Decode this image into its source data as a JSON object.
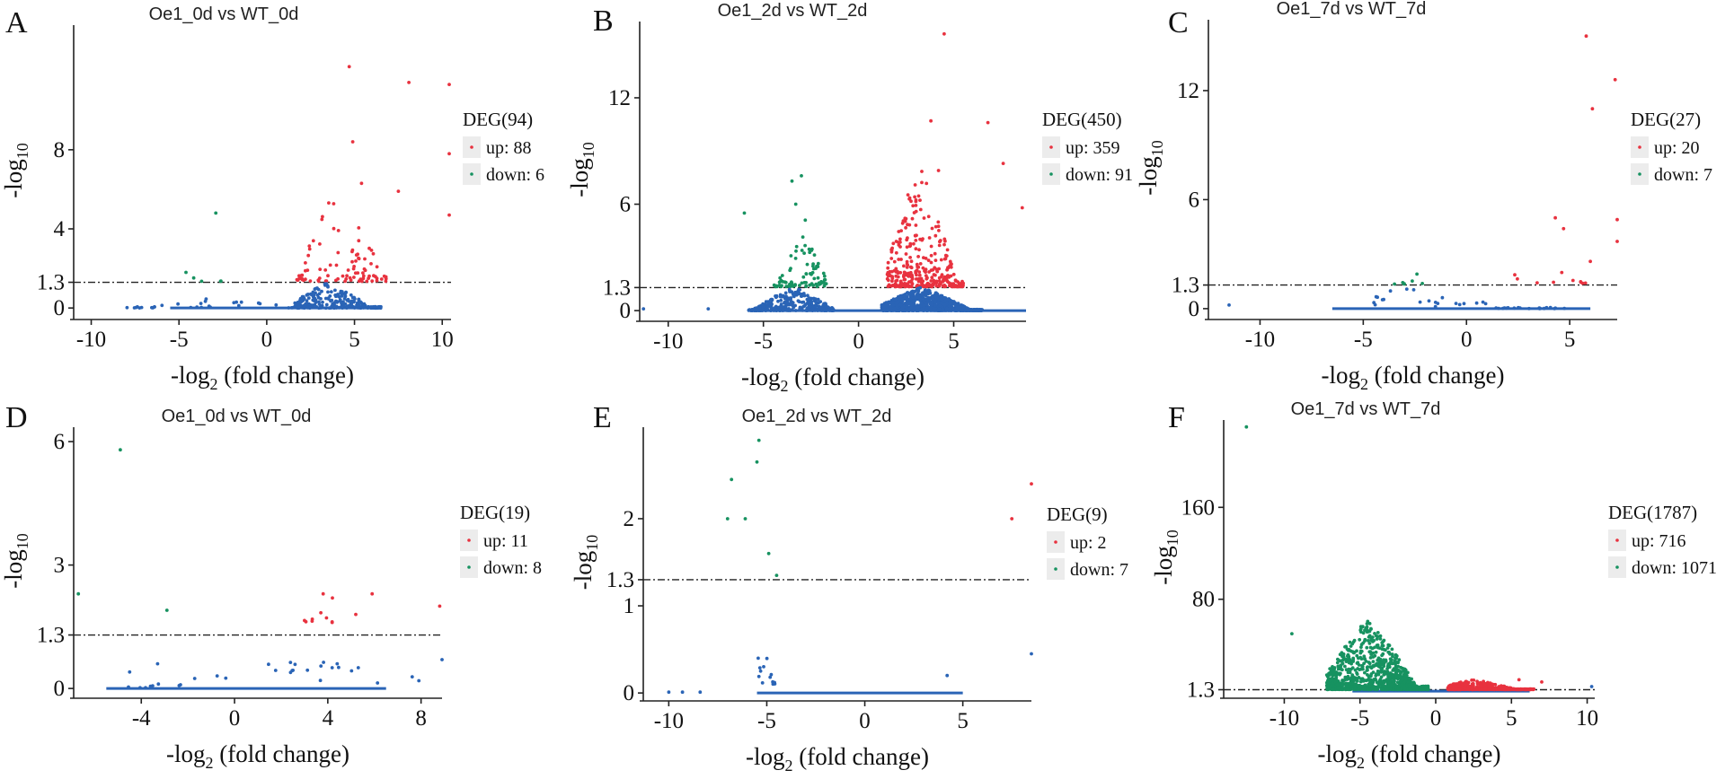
{
  "colors": {
    "up": "#e8323f",
    "down": "#179260",
    "ns": "#2a64b6",
    "legend_bg": "#ececec"
  },
  "chart_data": [
    {
      "type": "scatter",
      "panel": "A",
      "title": "Oe1_0d vs WT_0d",
      "xlabel": "-log",
      "xlabel_sub": "2",
      "xlabel_tail": " (fold change)",
      "ylabel": "-log",
      "ylabel_sub": "10",
      "xlim": [
        -11,
        10.5
      ],
      "ylim": [
        -0.4,
        14.3
      ],
      "xticks": [
        -10,
        -5,
        0,
        5,
        10
      ],
      "yticks": [
        0,
        1.3,
        4,
        8
      ],
      "threshold": 1.3,
      "legend": {
        "title": "DEG(94)",
        "up": "up: 88",
        "down": "down: 6"
      },
      "clouds": {
        "up": {
          "n": 88,
          "xmin": 1.7,
          "xmax": 6.8,
          "ymin": 1.35,
          "ymax": 6.5,
          "peak": 4.2,
          "decay": 2.2
        },
        "down": {
          "n": 4,
          "xmin": -4.5,
          "xmax": -2.5,
          "ymin": 1.35,
          "ymax": 2.0,
          "peak": -3.5,
          "decay": 2.5
        },
        "ns": {
          "n": 260,
          "xmin": 1.6,
          "xmax": 6.5,
          "ymin": 0,
          "ymax": 1.3,
          "peak": 3.5,
          "decay": 1.8
        },
        "ns2": {
          "n": 30,
          "xmin": -8,
          "xmax": 1.5,
          "ymin": 0,
          "ymax": 0.6,
          "peak": -3,
          "decay": 1.5
        }
      },
      "extras": [
        {
          "x": 4.7,
          "y": 12.2,
          "c": "up"
        },
        {
          "x": 8.1,
          "y": 11.4,
          "c": "up"
        },
        {
          "x": 10.4,
          "y": 11.3,
          "c": "up"
        },
        {
          "x": 4.9,
          "y": 8.4,
          "c": "up"
        },
        {
          "x": 10.4,
          "y": 7.8,
          "c": "up"
        },
        {
          "x": 5.4,
          "y": 6.3,
          "c": "up"
        },
        {
          "x": 7.5,
          "y": 5.9,
          "c": "up"
        },
        {
          "x": 10.4,
          "y": 4.7,
          "c": "up"
        },
        {
          "x": -2.9,
          "y": 4.8,
          "c": "down"
        },
        {
          "x": -4.6,
          "y": 1.8,
          "c": "down"
        }
      ]
    },
    {
      "type": "scatter",
      "panel": "B",
      "title": "Oe1_2d vs WT_2d",
      "xlabel": "-log",
      "xlabel_sub": "2",
      "xlabel_tail": " (fold change)",
      "ylabel": "-log",
      "ylabel_sub": "10",
      "xlim": [
        -11.5,
        8.8
      ],
      "ylim": [
        -0.4,
        16.3
      ],
      "xticks": [
        -10,
        -5,
        0,
        5
      ],
      "yticks": [
        0,
        1.3,
        6,
        12
      ],
      "threshold": 1.3,
      "legend": {
        "title": "DEG(450)",
        "up": "up: 359",
        "down": "down: 91"
      },
      "clouds": {
        "up": {
          "n": 340,
          "xmin": 1.5,
          "xmax": 5.5,
          "ymin": 1.35,
          "ymax": 8.2,
          "peak": 3.2,
          "decay": 2.3
        },
        "down": {
          "n": 85,
          "xmin": -4.5,
          "xmax": -1.6,
          "ymin": 1.35,
          "ymax": 4.2,
          "peak": -2.9,
          "decay": 2.0
        },
        "ns": {
          "n": 900,
          "xmin": 1.2,
          "xmax": 6.5,
          "ymin": 0,
          "ymax": 1.3,
          "peak": 3.3,
          "decay": 1.6
        },
        "ns2": {
          "n": 350,
          "xmin": -5.8,
          "xmax": -1.3,
          "ymin": 0,
          "ymax": 1.3,
          "peak": -3.4,
          "decay": 1.6
        }
      },
      "extras": [
        {
          "x": 4.5,
          "y": 15.6,
          "c": "up"
        },
        {
          "x": 3.8,
          "y": 10.7,
          "c": "up"
        },
        {
          "x": 6.8,
          "y": 10.6,
          "c": "up"
        },
        {
          "x": 7.6,
          "y": 8.3,
          "c": "up"
        },
        {
          "x": 4.2,
          "y": 7.9,
          "c": "up"
        },
        {
          "x": 8.6,
          "y": 5.8,
          "c": "up"
        },
        {
          "x": -3.0,
          "y": 7.6,
          "c": "down"
        },
        {
          "x": -3.5,
          "y": 7.3,
          "c": "down"
        },
        {
          "x": -6.0,
          "y": 5.5,
          "c": "down"
        },
        {
          "x": -3.3,
          "y": 6.0,
          "c": "down"
        },
        {
          "x": -2.8,
          "y": 5.1,
          "c": "down"
        },
        {
          "x": -7.9,
          "y": 0.1,
          "c": "ns"
        },
        {
          "x": -11.3,
          "y": 0.1,
          "c": "ns"
        }
      ]
    },
    {
      "type": "scatter",
      "panel": "C",
      "title": "Oe1_7d vs WT_7d",
      "xlabel": "-log",
      "xlabel_sub": "2",
      "xlabel_tail": " (fold change)",
      "ylabel": "-log",
      "ylabel_sub": "10",
      "xlim": [
        -12.5,
        7.3
      ],
      "ylim": [
        -0.4,
        15.9
      ],
      "xticks": [
        -10,
        -5,
        0,
        5
      ],
      "yticks": [
        0,
        1.3,
        6,
        12
      ],
      "threshold": 1.3,
      "legend": {
        "title": "DEG(27)",
        "up": "up: 20",
        "down": "down: 7"
      },
      "clouds": {
        "up": {
          "n": 10,
          "xmin": 2.0,
          "xmax": 6.5,
          "ymin": 1.35,
          "ymax": 2.5,
          "peak": 3.5,
          "decay": 1.5
        },
        "down": {
          "n": 6,
          "xmin": -3.5,
          "xmax": -2.0,
          "ymin": 1.35,
          "ymax": 1.9,
          "peak": -2.5,
          "decay": 1.5
        },
        "ns": {
          "n": 40,
          "xmin": -4.5,
          "xmax": 5.0,
          "ymin": 0,
          "ymax": 1.2,
          "peak": -2.5,
          "decay": 1.2
        }
      },
      "extras": [
        {
          "x": 5.8,
          "y": 15.0,
          "c": "up"
        },
        {
          "x": 7.2,
          "y": 12.6,
          "c": "up"
        },
        {
          "x": 6.1,
          "y": 11.0,
          "c": "up"
        },
        {
          "x": 4.3,
          "y": 5.0,
          "c": "up"
        },
        {
          "x": 4.7,
          "y": 4.4,
          "c": "up"
        },
        {
          "x": 7.3,
          "y": 4.9,
          "c": "up"
        },
        {
          "x": 7.3,
          "y": 3.7,
          "c": "up"
        },
        {
          "x": 6.0,
          "y": 2.6,
          "c": "up"
        },
        {
          "x": -2.4,
          "y": 1.9,
          "c": "down"
        },
        {
          "x": -11.5,
          "y": 0.2,
          "c": "ns"
        }
      ]
    },
    {
      "type": "scatter",
      "panel": "D",
      "title": "Oe1_0d vs WT_0d",
      "xlabel": "-log",
      "xlabel_sub": "2",
      "xlabel_tail": " (fold change)",
      "ylabel": "-log",
      "ylabel_sub": "10",
      "xlim": [
        -6.9,
        8.9
      ],
      "ylim": [
        -0.15,
        6.35
      ],
      "xticks": [
        -4,
        0,
        4,
        8
      ],
      "yticks": [
        0,
        1.3,
        3,
        6
      ],
      "threshold": 1.3,
      "legend": {
        "title": "DEG(19)",
        "up": "up: 11",
        "down": "down: 8"
      },
      "clouds": {
        "up": {
          "n": 8,
          "xmin": 2.9,
          "xmax": 4.2,
          "ymin": 1.6,
          "ymax": 2.1,
          "peak": 3.5,
          "decay": 1.0
        },
        "ns": {
          "n": 30,
          "xmin": -6,
          "xmax": 8.5,
          "ymin": 0,
          "ymax": 0.7,
          "peak": 3,
          "decay": 0.3
        }
      },
      "extras": [
        {
          "x": -4.9,
          "y": 5.8,
          "c": "down"
        },
        {
          "x": -6.7,
          "y": 2.3,
          "c": "down"
        },
        {
          "x": -2.9,
          "y": 1.9,
          "c": "down"
        },
        {
          "x": 5.9,
          "y": 2.3,
          "c": "up"
        },
        {
          "x": 5.2,
          "y": 1.8,
          "c": "up"
        },
        {
          "x": 8.8,
          "y": 2.0,
          "c": "up"
        },
        {
          "x": 3.8,
          "y": 2.3,
          "c": "up"
        },
        {
          "x": 4.2,
          "y": 2.2,
          "c": "up"
        },
        {
          "x": -3.3,
          "y": 0.6,
          "c": "ns"
        },
        {
          "x": -4.5,
          "y": 0.4,
          "c": "ns"
        },
        {
          "x": 8.9,
          "y": 0.7,
          "c": "ns"
        }
      ]
    },
    {
      "type": "scatter",
      "panel": "E",
      "title": "Oe1_2d vs WT_2d",
      "xlabel": "-log",
      "xlabel_sub": "2",
      "xlabel_tail": " (fold change)",
      "ylabel": "-log",
      "ylabel_sub": "10",
      "xlim": [
        -11.3,
        8.5
      ],
      "ylim": [
        -0.05,
        3.05
      ],
      "xticks": [
        -10,
        -5,
        0,
        5
      ],
      "yticks": [
        0,
        1,
        1.3,
        2
      ],
      "threshold": 1.3,
      "legend": {
        "title": "DEG(9)",
        "up": "up: 2",
        "down": "down: 7"
      },
      "clouds": {
        "ns": {
          "n": 14,
          "xmin": -5.6,
          "xmax": -4.5,
          "ymin": 0.1,
          "ymax": 0.8,
          "peak": -5.2,
          "decay": 1.0
        }
      },
      "extras": [
        {
          "x": -5.4,
          "y": 2.9,
          "c": "down"
        },
        {
          "x": -5.5,
          "y": 2.65,
          "c": "down"
        },
        {
          "x": -6.8,
          "y": 2.45,
          "c": "down"
        },
        {
          "x": -7.0,
          "y": 2.0,
          "c": "down"
        },
        {
          "x": -6.1,
          "y": 2.0,
          "c": "down"
        },
        {
          "x": -4.9,
          "y": 1.6,
          "c": "down"
        },
        {
          "x": -4.5,
          "y": 1.35,
          "c": "down"
        },
        {
          "x": 7.5,
          "y": 2.0,
          "c": "up"
        },
        {
          "x": 8.5,
          "y": 2.4,
          "c": "up"
        },
        {
          "x": 4.2,
          "y": 0.2,
          "c": "ns"
        },
        {
          "x": 8.5,
          "y": 0.45,
          "c": "ns"
        },
        {
          "x": -10.0,
          "y": 0.01,
          "c": "ns"
        },
        {
          "x": -9.3,
          "y": 0.01,
          "c": "ns"
        },
        {
          "x": -8.4,
          "y": 0.01,
          "c": "ns"
        }
      ]
    },
    {
      "type": "scatter",
      "panel": "F",
      "title": "Oe1_7d vs WT_7d",
      "xlabel": "-log",
      "xlabel_sub": "2",
      "xlabel_tail": " (fold change)",
      "ylabel": "-log",
      "ylabel_sub": "10",
      "xlim": [
        -14.0,
        10.5
      ],
      "ylim": [
        -3,
        236
      ],
      "xticks": [
        -10,
        -5,
        0,
        5,
        10
      ],
      "yticks": [
        1.3,
        80,
        160
      ],
      "threshold": 1.3,
      "legend": {
        "title": "DEG(1787)",
        "up": "up: 716",
        "down": "down: 1071"
      },
      "clouds": {
        "up": {
          "n": 500,
          "xmin": 0.8,
          "xmax": 6.5,
          "ymin": 1.5,
          "ymax": 10,
          "peak": 2.5,
          "decay": 3.0
        },
        "down": {
          "n": 1000,
          "xmin": -7.2,
          "xmax": -0.5,
          "ymin": 1.5,
          "ymax": 62,
          "peak": -4.5,
          "decay": 2.2
        }
      },
      "extras": [
        {
          "x": -12.5,
          "y": 230,
          "c": "down"
        },
        {
          "x": -9.5,
          "y": 50,
          "c": "down"
        },
        {
          "x": 7.0,
          "y": 8,
          "c": "up"
        },
        {
          "x": 5.5,
          "y": 10,
          "c": "up"
        },
        {
          "x": 10.3,
          "y": 4,
          "c": "ns"
        }
      ]
    }
  ]
}
